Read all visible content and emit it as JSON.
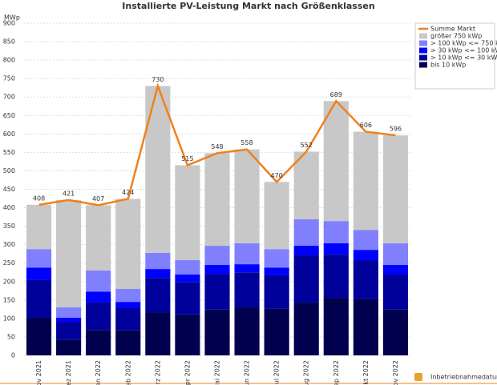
{
  "chart_data": {
    "type": "bar",
    "title": "Installierte PV-Leistung Markt nach Größenklassen",
    "y_label": "MWp",
    "x_label": "Inbetriebnahmedatum",
    "categories": [
      "Nov 2021",
      "Dez 2021",
      "Jan 2022",
      "Feb 2022",
      "Mrz 2022",
      "Apr 2022",
      "Mai 2022",
      "Jun 2022",
      "Jul 2022",
      "Aug 2022",
      "Sep 2022",
      "Okt 2022",
      "Nov 2022"
    ],
    "series": [
      {
        "name": "bis 10 kWp",
        "color": "#00004f",
        "values": [
          102,
          43,
          69,
          69,
          117,
          111,
          124,
          130,
          126,
          143,
          156,
          152,
          124
        ]
      },
      {
        "name": "> 10 kWp <= 30 kWp",
        "color": "#00009a",
        "values": [
          102,
          48,
          74,
          59,
          93,
          88,
          97,
          95,
          91,
          128,
          117,
          106,
          95
        ]
      },
      {
        "name": "> 30 kWp <= 100 kWp",
        "color": "#0000ff",
        "values": [
          34,
          11,
          30,
          17,
          24,
          20,
          24,
          22,
          21,
          26,
          31,
          28,
          26
        ]
      },
      {
        "name": "> 100 kWp <= 750 kWp",
        "color": "#8080ff",
        "values": [
          50,
          28,
          57,
          35,
          44,
          39,
          52,
          57,
          50,
          72,
          60,
          54,
          59
        ]
      },
      {
        "name": "größer 750 kWp",
        "color": "#c8c8c8",
        "values": [
          120,
          291,
          177,
          244,
          452,
          257,
          251,
          254,
          182,
          183,
          325,
          266,
          292
        ]
      }
    ],
    "line": {
      "type": "line",
      "name": "Summe Markt",
      "color": "#f0801e",
      "values": [
        408,
        421,
        407,
        424,
        730,
        515,
        548,
        558,
        470,
        552,
        689,
        606,
        596
      ]
    },
    "ylim": [
      0,
      900
    ],
    "yticks": [
      0,
      50,
      100,
      150,
      200,
      250,
      300,
      350,
      400,
      450,
      500,
      550,
      600,
      650,
      700,
      750,
      800,
      850,
      900
    ],
    "grid": true
  }
}
